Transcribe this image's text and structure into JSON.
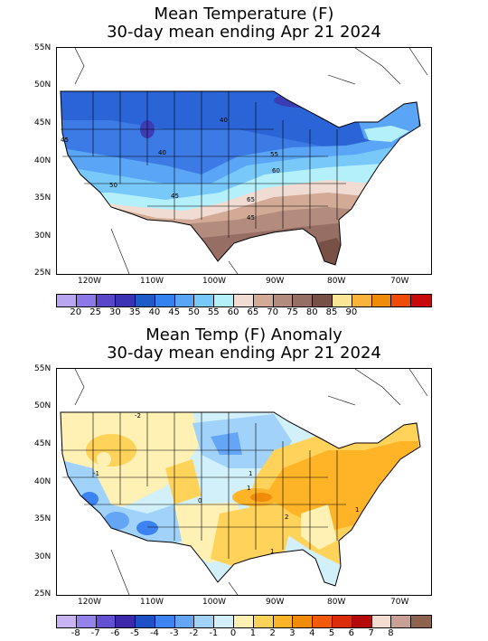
{
  "maps": [
    {
      "title_line1": "Mean Temperature (F)",
      "title_line2": "30-day mean ending Apr 21 2024",
      "lat_labels": [
        "55N",
        "50N",
        "45N",
        "40N",
        "35N",
        "30N",
        "25N"
      ],
      "lon_labels": [
        "120W",
        "110W",
        "100W",
        "90W",
        "80W",
        "70W"
      ],
      "contour_labels": [
        "40",
        "40",
        "45",
        "45",
        "50",
        "55",
        "60",
        "65",
        "45"
      ],
      "colorbar": {
        "colors": [
          "#b9a5f0",
          "#8c78e6",
          "#5a46c8",
          "#3c32b4",
          "#1e5ac8",
          "#3282f0",
          "#5aa5f5",
          "#78c8fa",
          "#b4f0fa",
          "#f0dcd2",
          "#d2aa96",
          "#b48c7d",
          "#966e64",
          "#785046",
          "#fae696",
          "#fab43c",
          "#f08c0a",
          "#f04b0a",
          "#c80a0a"
        ],
        "labels": [
          "20",
          "25",
          "30",
          "35",
          "40",
          "45",
          "50",
          "55",
          "60",
          "65",
          "70",
          "75",
          "80",
          "85",
          "90"
        ]
      }
    },
    {
      "title_line1": "Mean Temp (F) Anomaly",
      "title_line2": "30-day mean ending Apr 21 2024",
      "lat_labels": [
        "55N",
        "50N",
        "45N",
        "40N",
        "35N",
        "30N",
        "25N"
      ],
      "lon_labels": [
        "120W",
        "110W",
        "100W",
        "90W",
        "80W",
        "70W"
      ],
      "contour_labels": [
        "-2",
        "1",
        "0",
        "1",
        "2",
        "1",
        "1",
        "-1"
      ],
      "colorbar": {
        "colors": [
          "#c8b4f5",
          "#9682eb",
          "#6450d2",
          "#3c28aa",
          "#1e50c8",
          "#3c82f0",
          "#64a5f5",
          "#a0d2fa",
          "#d2f0fa",
          "#fff0b4",
          "#ffd25a",
          "#ffb428",
          "#f08c0a",
          "#f05a0a",
          "#dc2d0a",
          "#b40a0a",
          "#f5dcd2",
          "#c8a096",
          "#8c6450"
        ],
        "labels": [
          "-8",
          "-7",
          "-6",
          "-5",
          "-4",
          "-3",
          "-2",
          "-1",
          "0",
          "1",
          "2",
          "3",
          "4",
          "5",
          "6",
          "7",
          "8"
        ]
      }
    }
  ]
}
